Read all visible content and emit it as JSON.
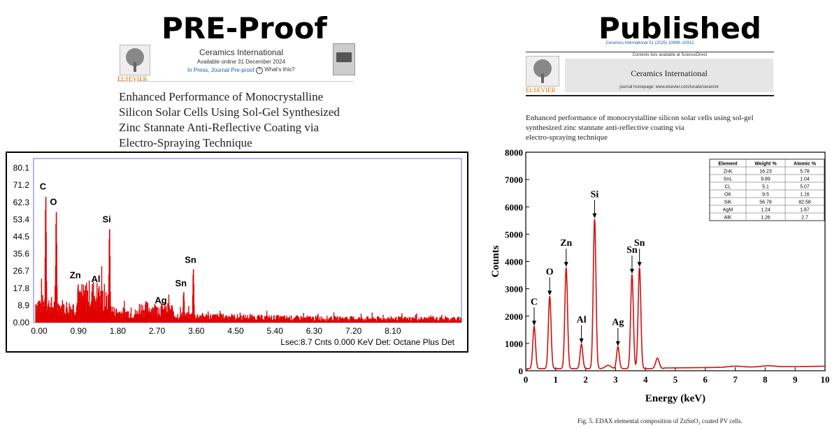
{
  "left": {
    "heading": "PRE-Proof",
    "journal": "Ceramics International",
    "available": "Available online 31 December 2024",
    "status": "In Press, Journal Pre-proof",
    "whats_this": "What's this?",
    "publisher": "ELSEVIER",
    "title_lines": [
      "Enhanced Performance of Monocrystalline",
      "Silicon Solar Cells Using Sol-Gel Synthesized",
      "Zinc Stannate Anti-Reflective Coating via",
      "Electro-Spraying Technique"
    ]
  },
  "right": {
    "heading": "Published",
    "citation": "Ceramics International 51 (2025) 10899–10912",
    "contents": "Contents lists available at ScienceDirect",
    "journal": "Ceramics International",
    "homepage": "journal homepage: www.elsevier.com/locate/ceramint",
    "publisher": "ELSEVIER",
    "title_lines": [
      "Enhanced performance of monocrystalline silicon solar cells using sol-gel",
      "synthesized zinc stannate anti-reflective coating via",
      "electro-spraying technique"
    ],
    "caption": "Fig. 5. EDAX elemental composition of ZnSnO₃ coated PV cells."
  },
  "chart_data": [
    {
      "type": "line",
      "xlabel": "",
      "ylabel": "",
      "xlim": [
        0,
        9.8
      ],
      "ylim": [
        0,
        85
      ],
      "x_ticks": [
        "0.00",
        "0.90",
        "1.80",
        "2.70",
        "3.60",
        "4.50",
        "5.40",
        "6.30",
        "7.20",
        "8.10"
      ],
      "y_ticks": [
        "0.00",
        "8.9",
        "17.8",
        "26.7",
        "35.6",
        "44.5",
        "53.4",
        "62.3",
        "71.2",
        "80.1"
      ],
      "footer": "Lsec:8.7 Cnts 0.000 KeV Det: Octane Plus  Det",
      "color": "#e00000",
      "peaks": [
        {
          "label": "C",
          "x": 0.28,
          "y": 66
        },
        {
          "label": "O",
          "x": 0.52,
          "y": 58
        },
        {
          "label": "Zn",
          "x": 1.02,
          "y": 20
        },
        {
          "label": "Al",
          "x": 1.49,
          "y": 18
        },
        {
          "label": "Si",
          "x": 1.74,
          "y": 49
        },
        {
          "label": "Ag",
          "x": 2.98,
          "y": 7
        },
        {
          "label": "Sn",
          "x": 3.44,
          "y": 16
        },
        {
          "label": "Sn",
          "x": 3.66,
          "y": 28
        }
      ]
    },
    {
      "type": "line",
      "xlabel": "Energy (keV)",
      "ylabel": "Counts",
      "xlim": [
        0,
        10
      ],
      "ylim": [
        0,
        8000
      ],
      "x_ticks": [
        "0",
        "1",
        "2",
        "3",
        "4",
        "5",
        "6",
        "7",
        "8",
        "9",
        "10"
      ],
      "y_ticks": [
        "0",
        "1000",
        "2000",
        "3000",
        "4000",
        "5000",
        "6000",
        "7000",
        "8000"
      ],
      "color": "#d01010",
      "peaks": [
        {
          "label": "C",
          "x": 0.28,
          "y": 1550
        },
        {
          "label": "O",
          "x": 0.8,
          "y": 2650
        },
        {
          "label": "Zn",
          "x": 1.35,
          "y": 3700
        },
        {
          "label": "Al",
          "x": 1.86,
          "y": 900
        },
        {
          "label": "Si",
          "x": 2.3,
          "y": 5480
        },
        {
          "label": "Ag",
          "x": 3.08,
          "y": 800
        },
        {
          "label": "Sn",
          "x": 3.55,
          "y": 3450
        },
        {
          "label": "Sn",
          "x": 3.8,
          "y": 3700
        }
      ],
      "table": {
        "headers": [
          "Element",
          "Weight %",
          "Atomic %"
        ],
        "rows": [
          [
            "ZnK",
            "16.23",
            "5.78"
          ],
          [
            "SnL",
            "9.89",
            "1.04"
          ],
          [
            "CL",
            "5.1",
            "5.07"
          ],
          [
            "OK",
            "9.5",
            "1.16"
          ],
          [
            "SiK",
            "56.78",
            "82.58"
          ],
          [
            "AgM",
            "1.24",
            "1.67"
          ],
          [
            "AlK",
            "1.26",
            "2.7"
          ]
        ]
      }
    }
  ]
}
